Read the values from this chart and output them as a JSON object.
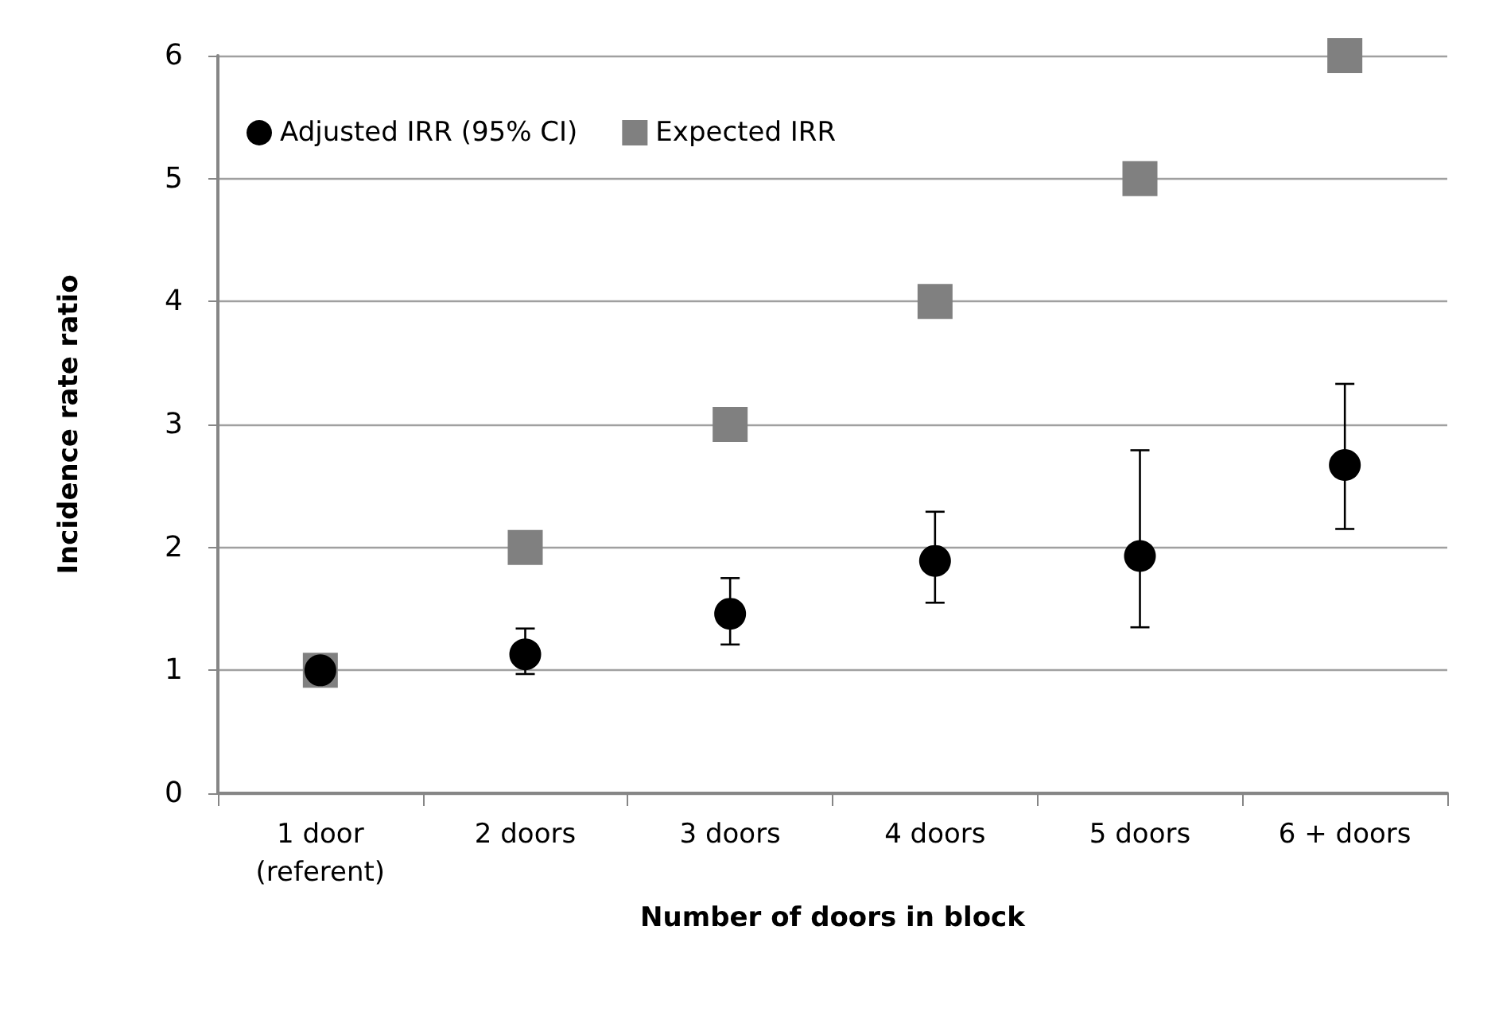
{
  "chart_data": {
    "type": "scatter",
    "xlabel": "Number of doors in block",
    "ylabel": "Incidence rate ratio",
    "categories": [
      "1 door\n(referent)",
      "2 doors",
      "3 doors",
      "4 doors",
      "5 doors",
      "6 + doors"
    ],
    "series": [
      {
        "name": "Adjusted IRR (95% CI)",
        "color": "#000000",
        "marker": "circle",
        "values": [
          1.0,
          1.13,
          1.46,
          1.89,
          1.93,
          2.67
        ],
        "errors": [
          null,
          [
            0.97,
            1.34
          ],
          [
            1.21,
            1.75
          ],
          [
            1.55,
            2.29
          ],
          [
            1.35,
            2.79
          ],
          [
            2.15,
            3.33
          ]
        ]
      },
      {
        "name": "Expected IRR",
        "color": "#808080",
        "marker": "square",
        "values": [
          1,
          2,
          3,
          4,
          5,
          6
        ]
      }
    ],
    "ylim": [
      0,
      6
    ],
    "yticks": [
      0,
      1,
      2,
      3,
      4,
      5,
      6
    ],
    "grid": "y",
    "legend": "top left"
  }
}
